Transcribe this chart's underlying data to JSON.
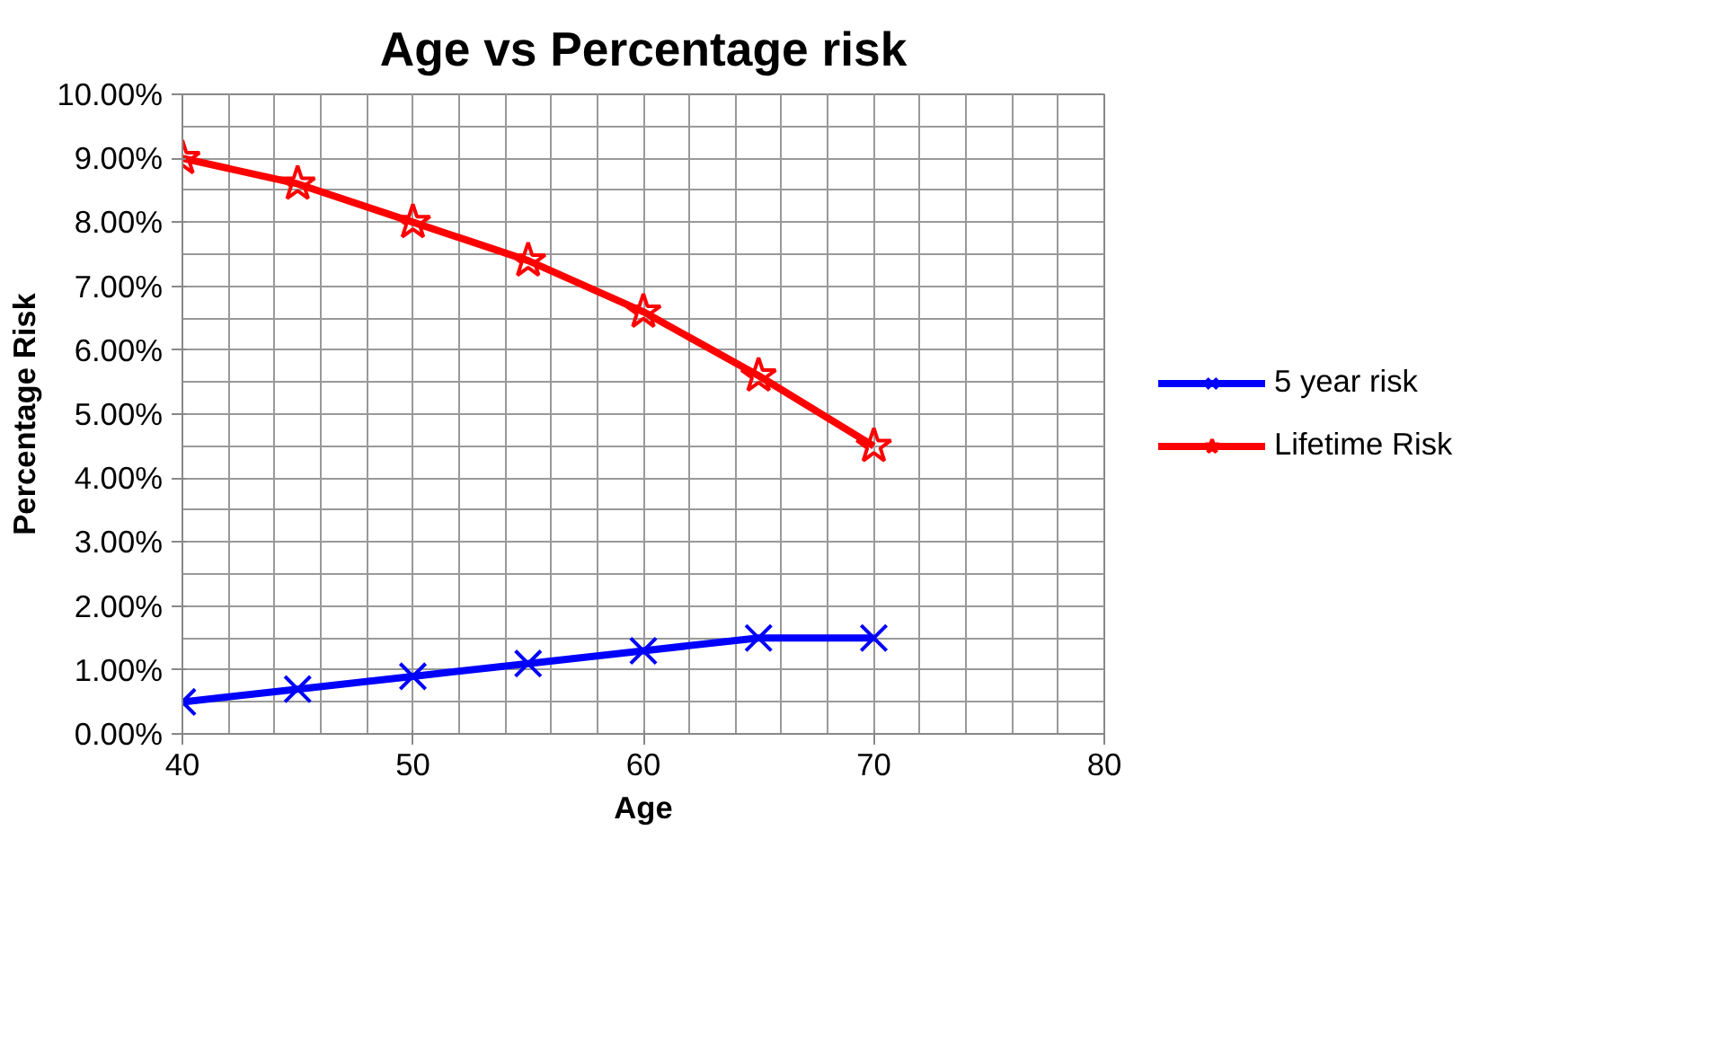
{
  "chart_data": {
    "type": "line",
    "title": "Age vs Percentage risk",
    "xlabel": "Age",
    "ylabel": "Percentage Risk",
    "x": [
      40,
      45,
      50,
      55,
      60,
      65,
      70
    ],
    "series": [
      {
        "name": "5 year risk",
        "color": "#0000ff",
        "marker": "cross",
        "values": [
          0.5,
          0.7,
          0.9,
          1.1,
          1.3,
          1.5,
          1.5
        ]
      },
      {
        "name": "Lifetime Risk",
        "color": "#ff0000",
        "marker": "star",
        "values": [
          9.0,
          8.6,
          8.0,
          7.4,
          6.6,
          5.6,
          4.5
        ]
      }
    ],
    "xlim": [
      40,
      80
    ],
    "xticks": [
      40,
      50,
      60,
      70,
      80
    ],
    "ylim": [
      0,
      10
    ],
    "yticks": [
      {
        "value": 0,
        "label": "0.00%"
      },
      {
        "value": 1,
        "label": "1.00%"
      },
      {
        "value": 2,
        "label": "2.00%"
      },
      {
        "value": 3,
        "label": "3.00%"
      },
      {
        "value": 4,
        "label": "4.00%"
      },
      {
        "value": 5,
        "label": "5.00%"
      },
      {
        "value": 6,
        "label": "6.00%"
      },
      {
        "value": 7,
        "label": "7.00%"
      },
      {
        "value": 8,
        "label": "8.00%"
      },
      {
        "value": 9,
        "label": "9.00%"
      },
      {
        "value": 10,
        "label": "10.00%"
      }
    ],
    "grid": true,
    "legend": "right",
    "line_style": "solid"
  }
}
